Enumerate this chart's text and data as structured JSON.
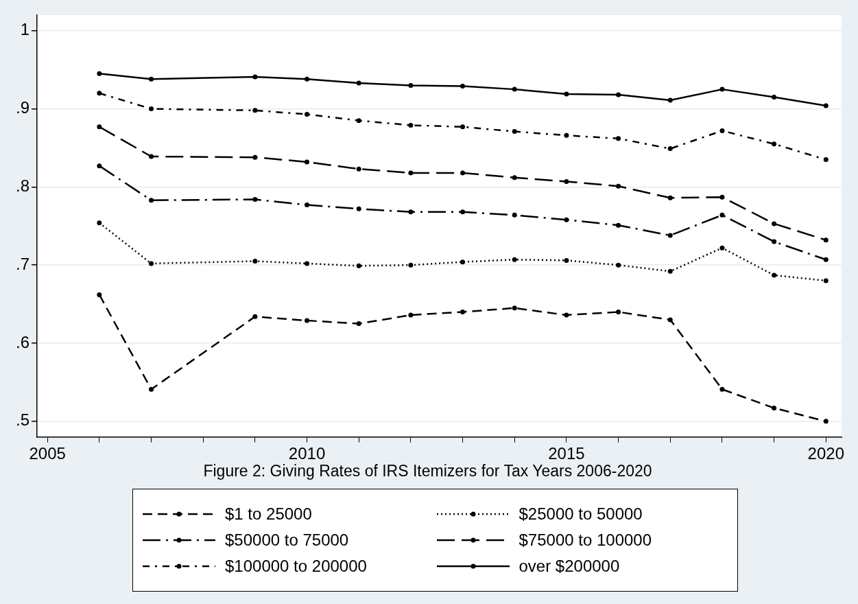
{
  "chart_data": {
    "type": "line",
    "title": "Figure 2: Giving Rates of IRS Itemizers for Tax Years 2006-2020",
    "xlim": [
      2004.8,
      2020.3
    ],
    "xticks": [
      2005,
      {
        "value": 2006,
        "label": null
      },
      {
        "value": 2007,
        "label": null
      },
      {
        "value": 2008,
        "label": null
      },
      {
        "value": 2009,
        "label": null
      },
      2010,
      {
        "value": 2011,
        "label": null
      },
      {
        "value": 2012,
        "label": null
      },
      {
        "value": 2013,
        "label": null
      },
      {
        "value": 2014,
        "label": null
      },
      2015,
      {
        "value": 2016,
        "label": null
      },
      {
        "value": 2017,
        "label": null
      },
      {
        "value": 2018,
        "label": null
      },
      {
        "value": 2019,
        "label": null
      },
      2020
    ],
    "ylim": [
      0.48,
      1.02
    ],
    "yticks": [
      {
        "value": 0.5,
        "label": ".5"
      },
      {
        "value": 0.6,
        "label": ".6"
      },
      {
        "value": 0.7,
        "label": ".7"
      },
      {
        "value": 0.8,
        "label": ".8"
      },
      {
        "value": 0.9,
        "label": ".9"
      },
      {
        "value": 1,
        "label": "1"
      }
    ],
    "grid": "y",
    "legend": "bottom",
    "marker": "circle",
    "series": [
      {
        "name": "$1 to 25000",
        "color": "#000000",
        "line_style": "dashed",
        "x": [
          2006,
          2007,
          2009,
          2010,
          2011,
          2012,
          2013,
          2014,
          2015,
          2016,
          2017,
          2018,
          2019,
          2020
        ],
        "values": [
          0.662,
          0.541,
          0.634,
          0.629,
          0.625,
          0.636,
          0.64,
          0.645,
          0.636,
          0.64,
          0.63,
          0.541,
          0.517,
          0.5
        ]
      },
      {
        "name": "$25000 to 50000",
        "color": "#000000",
        "line_style": "dotted",
        "x": [
          2006,
          2007,
          2009,
          2010,
          2011,
          2012,
          2013,
          2014,
          2015,
          2016,
          2017,
          2018,
          2019,
          2020
        ],
        "values": [
          0.754,
          0.702,
          0.705,
          0.702,
          0.699,
          0.7,
          0.704,
          0.707,
          0.706,
          0.7,
          0.692,
          0.722,
          0.687,
          0.68
        ]
      },
      {
        "name": "$50000 to 75000",
        "color": "#000000",
        "line_style": "longdashdot",
        "x": [
          2006,
          2007,
          2009,
          2010,
          2011,
          2012,
          2013,
          2014,
          2015,
          2016,
          2017,
          2018,
          2019,
          2020
        ],
        "values": [
          0.827,
          0.783,
          0.784,
          0.777,
          0.772,
          0.768,
          0.768,
          0.764,
          0.758,
          0.751,
          0.738,
          0.764,
          0.73,
          0.707
        ]
      },
      {
        "name": "$75000 to 100000",
        "color": "#000000",
        "line_style": "longdash",
        "x": [
          2006,
          2007,
          2009,
          2010,
          2011,
          2012,
          2013,
          2014,
          2015,
          2016,
          2017,
          2018,
          2019,
          2020
        ],
        "values": [
          0.877,
          0.839,
          0.838,
          0.832,
          0.823,
          0.818,
          0.818,
          0.812,
          0.807,
          0.801,
          0.786,
          0.787,
          0.753,
          0.732
        ]
      },
      {
        "name": "$100000 to 200000",
        "color": "#000000",
        "line_style": "dashdot",
        "x": [
          2006,
          2007,
          2009,
          2010,
          2011,
          2012,
          2013,
          2014,
          2015,
          2016,
          2017,
          2018,
          2019,
          2020
        ],
        "values": [
          0.92,
          0.9,
          0.898,
          0.893,
          0.885,
          0.879,
          0.877,
          0.871,
          0.866,
          0.862,
          0.849,
          0.872,
          0.855,
          0.835
        ]
      },
      {
        "name": "over $200000",
        "color": "#000000",
        "line_style": "solid",
        "x": [
          2006,
          2007,
          2009,
          2010,
          2011,
          2012,
          2013,
          2014,
          2015,
          2016,
          2017,
          2018,
          2019,
          2020
        ],
        "values": [
          0.945,
          0.938,
          0.941,
          0.938,
          0.933,
          0.93,
          0.929,
          0.925,
          0.919,
          0.918,
          0.911,
          0.925,
          0.915,
          0.904
        ]
      }
    ]
  }
}
